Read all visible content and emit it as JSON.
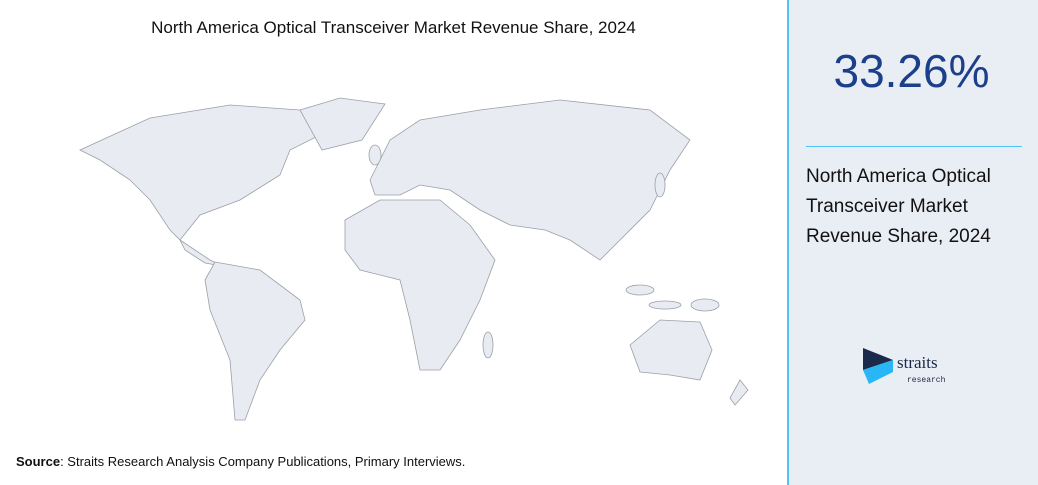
{
  "title": "North America Optical Transceiver Market Revenue Share, 2024",
  "stat": {
    "value": "33.26%",
    "description": "North America Optical Transceiver Market Revenue Share, 2024"
  },
  "source": {
    "label": "Source",
    "text": ": Straits Research Analysis Company Publications, Primary Interviews."
  },
  "logo": {
    "name": "straits",
    "tagline": "research"
  }
}
